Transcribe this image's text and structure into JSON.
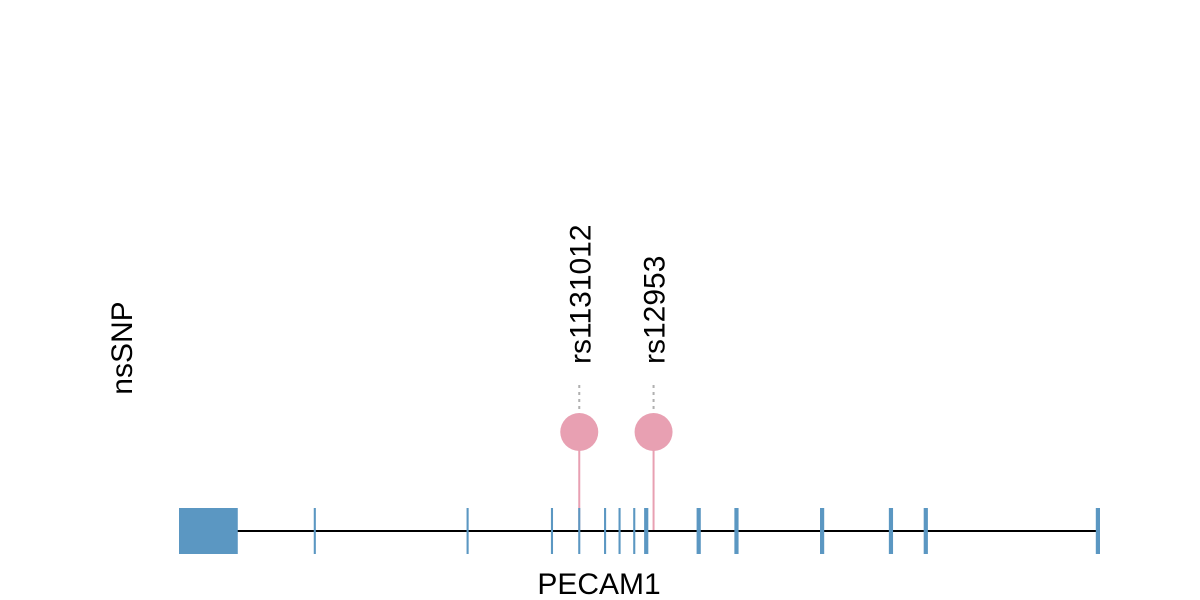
{
  "track_label": "nsSNP",
  "gene": {
    "name": "PECAM1",
    "exon_color": "#5b97c2",
    "line_color": "#000000",
    "exons": [
      {
        "id": "exon-1",
        "bp_start": 0,
        "bp_end": 2800
      },
      {
        "id": "exon-2",
        "bp_start": 6420,
        "bp_end": 6520
      },
      {
        "id": "exon-3",
        "bp_start": 13700,
        "bp_end": 13800
      },
      {
        "id": "exon-4",
        "bp_start": 17720,
        "bp_end": 17820
      },
      {
        "id": "exon-5",
        "bp_start": 19020,
        "bp_end": 19120
      },
      {
        "id": "exon-6",
        "bp_start": 20250,
        "bp_end": 20350
      },
      {
        "id": "exon-7",
        "bp_start": 20940,
        "bp_end": 21040
      },
      {
        "id": "exon-8",
        "bp_start": 21640,
        "bp_end": 21740
      },
      {
        "id": "exon-9",
        "bp_start": 22160,
        "bp_end": 22360
      },
      {
        "id": "exon-10",
        "bp_start": 24660,
        "bp_end": 24860
      },
      {
        "id": "exon-11",
        "bp_start": 26460,
        "bp_end": 26660
      },
      {
        "id": "exon-12",
        "bp_start": 30540,
        "bp_end": 30740
      },
      {
        "id": "exon-13",
        "bp_start": 33820,
        "bp_end": 34020
      },
      {
        "id": "exon-14",
        "bp_start": 35480,
        "bp_end": 35680
      },
      {
        "id": "exon-15",
        "bp_start": 43680,
        "bp_end": 43880
      }
    ],
    "gene_length_bp": 43880
  },
  "snps": [
    {
      "id": "rs1131012",
      "bp": 19070,
      "color": "#e8a0b2"
    },
    {
      "id": "rs12953",
      "bp": 22610,
      "color": "#e8a0b2"
    }
  ]
}
